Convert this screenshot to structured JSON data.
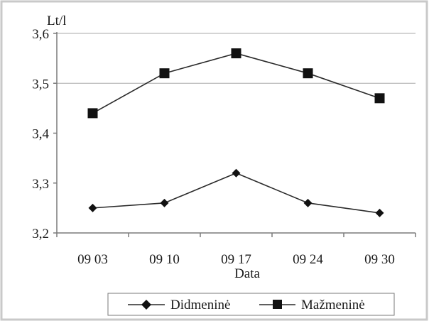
{
  "chart_data": {
    "type": "line",
    "title": "",
    "xlabel": "Data",
    "ylabel": "Lt/l",
    "categories": [
      "09 03",
      "09 10",
      "09 17",
      "09 24",
      "09 30"
    ],
    "ylim": [
      3.2,
      3.6
    ],
    "y_ticks": [
      "3,2",
      "3,3",
      "3,4",
      "3,5",
      "3,6"
    ],
    "y_tick_values": [
      3.2,
      3.3,
      3.4,
      3.5,
      3.6
    ],
    "grid": "horizontal gridlines at 3,5 and 3,6",
    "legend_position": "bottom",
    "series": [
      {
        "name": "Didmeninė",
        "marker": "diamond",
        "values": [
          3.25,
          3.26,
          3.32,
          3.26,
          3.24
        ]
      },
      {
        "name": "Mažmeninė",
        "marker": "square",
        "values": [
          3.44,
          3.52,
          3.56,
          3.52,
          3.47
        ]
      }
    ],
    "colors": {
      "line": "#2a2a2a",
      "axis": "#7a7a7a",
      "grid": "#a8a8a8"
    }
  }
}
